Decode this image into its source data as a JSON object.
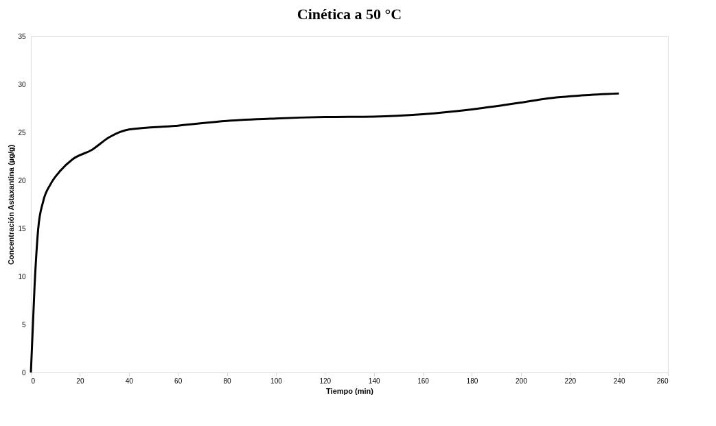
{
  "chart_data": {
    "type": "line",
    "title": "Cinética a 50 °C",
    "xlabel": "Tiempo (min)",
    "ylabel": "Concentración Astaxantina (µg/g)",
    "x": [
      0,
      1.5,
      3,
      5,
      8,
      12,
      17,
      25,
      32,
      40,
      60,
      80,
      100,
      120,
      140,
      160,
      180,
      200,
      210,
      225,
      240
    ],
    "series": [
      {
        "color": "#000000",
        "values": [
          0,
          9,
          15,
          17.8,
          19.6,
          21,
          22.2,
          23.2,
          24.5,
          25.3,
          25.7,
          26.2,
          26.45,
          26.6,
          26.65,
          26.9,
          27.4,
          28.1,
          28.5,
          28.85,
          29.05
        ]
      }
    ],
    "xlim": [
      0,
      260
    ],
    "xticks": [
      0,
      20,
      40,
      60,
      80,
      100,
      120,
      140,
      160,
      180,
      200,
      220,
      240,
      260
    ],
    "ylim": [
      0,
      35
    ],
    "yticks": [
      0,
      5,
      10,
      15,
      20,
      25,
      30,
      35
    ],
    "grid": false,
    "legend": false,
    "marker": "none",
    "line_style": "solid"
  }
}
